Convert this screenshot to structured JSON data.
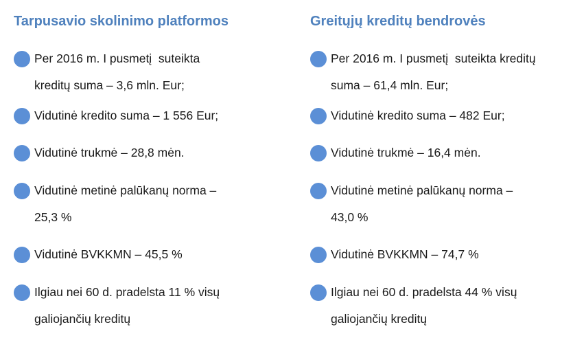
{
  "left": {
    "title": "Tarpusavio skolinimo platformos",
    "items": [
      {
        "lines": [
          "Per 2016 m. I pusmetį  suteikta",
          "kreditų suma – 3,6 mln. Eur;"
        ]
      },
      {
        "lines": [
          "Vidutinė kredito suma – 1 556 Eur;"
        ]
      },
      {
        "lines": [
          "Vidutinė trukmė – 28,8 mėn."
        ]
      },
      {
        "lines": [
          "Vidutinė metinė palūkanų norma –",
          "25,3 %"
        ]
      },
      {
        "lines": [
          "Vidutinė BVKKMN – 45,5 %"
        ]
      },
      {
        "lines": [
          "Ilgiau nei 60 d. pradelsta 11 % visų",
          "galiojančių kreditų"
        ]
      }
    ]
  },
  "right": {
    "title": "Greitųjų kreditų bendrovės",
    "items": [
      {
        "lines": [
          "Per 2016 m. I pusmetį  suteikta kreditų",
          "suma – 61,4 mln. Eur;"
        ]
      },
      {
        "lines": [
          "Vidutinė kredito suma – 482 Eur;"
        ]
      },
      {
        "lines": [
          "Vidutinė trukmė – 16,4 mėn."
        ]
      },
      {
        "lines": [
          "Vidutinė metinė palūkanų norma –",
          "43,0 %"
        ]
      },
      {
        "lines": [
          "Vidutinė BVKKMN – 74,7 %"
        ]
      },
      {
        "lines": [
          "Ilgiau nei 60 d. pradelsta 44 % visų",
          "galiojančių kreditų"
        ]
      }
    ]
  },
  "colors": {
    "title": "#4f81bd",
    "bullet": "#5b8fd6",
    "text": "#1a1a1a"
  }
}
